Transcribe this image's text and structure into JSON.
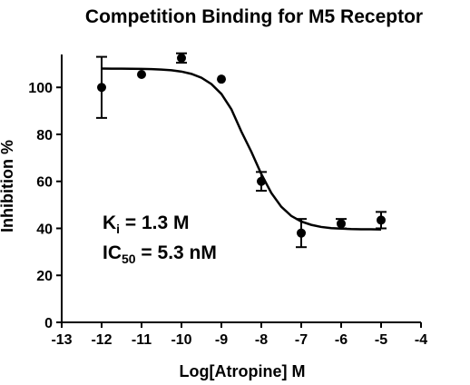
{
  "chart_data": {
    "type": "scatter",
    "title": "Competition Binding for M5 Receptor",
    "x_label": "Log[Atropine] M",
    "y_label": "Inhibition %",
    "xlim": [
      -13,
      -4
    ],
    "ylim": [
      0,
      114
    ],
    "xticks": [
      -13,
      -12,
      -11,
      -10,
      -9,
      -8,
      -7,
      -6,
      -5,
      -4
    ],
    "yticks": [
      0,
      20,
      40,
      60,
      80,
      100
    ],
    "color": "#000000",
    "series": [
      {
        "x": [
          -12,
          -11,
          -10,
          -9,
          -8,
          -7,
          -6,
          -5
        ],
        "values": [
          100,
          105.5,
          112.5,
          103.5,
          60,
          38,
          42,
          43.5
        ],
        "errors": [
          13,
          null,
          2,
          null,
          4,
          6,
          2,
          3.5
        ]
      }
    ],
    "fit": {
      "x": [
        -12,
        -11.75,
        -11.5,
        -11.25,
        -11,
        -10.75,
        -10.5,
        -10.25,
        -10,
        -9.75,
        -9.5,
        -9.25,
        -9,
        -8.75,
        -8.5,
        -8.25,
        -8,
        -7.75,
        -7.5,
        -7.25,
        -7,
        -6.75,
        -6.5,
        -6.25,
        -6,
        -5.75,
        -5.5,
        -5.25,
        -5
      ],
      "values": [
        108,
        107.98,
        107.96,
        107.93,
        107.87,
        107.77,
        107.59,
        107.27,
        106.72,
        105.75,
        104.1,
        101.4,
        97.2,
        90.7,
        81.2,
        72.6,
        63.1,
        55.1,
        49.2,
        45.3,
        42.9,
        41.5,
        40.6,
        40.1,
        39.9,
        39.7,
        39.6,
        39.6,
        39.5
      ]
    },
    "annotations": [
      {
        "main": "K",
        "sub": "i",
        "rest": " = 1.3 M"
      },
      {
        "main": "IC",
        "sub": "50",
        "rest": " = 5.3 nM"
      }
    ]
  }
}
